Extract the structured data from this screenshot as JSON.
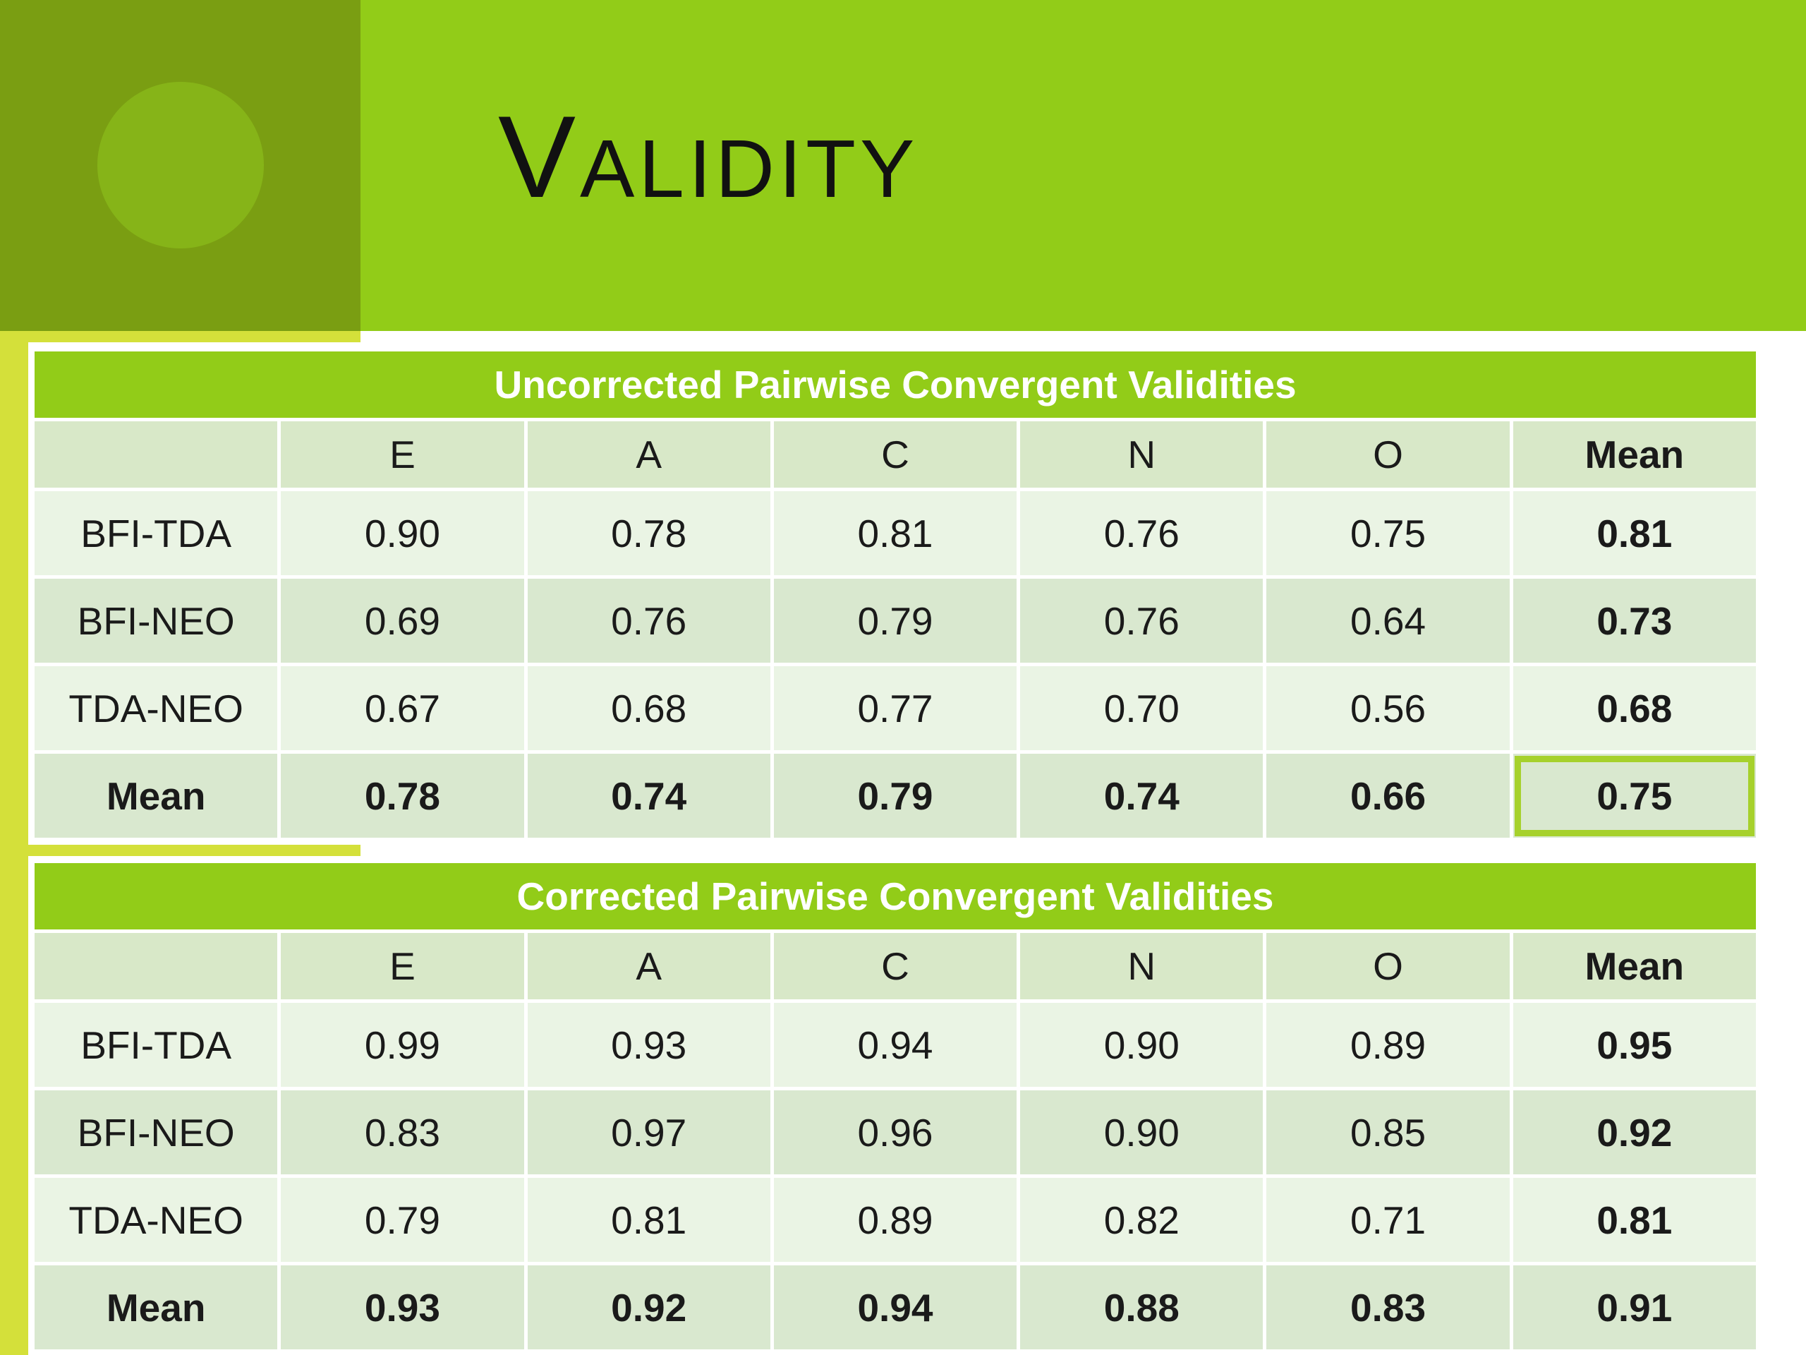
{
  "title": "Validity",
  "tables": [
    {
      "caption": "Uncorrected Pairwise Convergent Validities",
      "columns": [
        "E",
        "A",
        "C",
        "N",
        "O",
        "Mean"
      ],
      "rows": [
        {
          "label": "BFI-TDA",
          "cells": [
            "0.90",
            "0.78",
            "0.81",
            "0.76",
            "0.75",
            "0.81"
          ]
        },
        {
          "label": "BFI-NEO",
          "cells": [
            "0.69",
            "0.76",
            "0.79",
            "0.76",
            "0.64",
            "0.73"
          ]
        },
        {
          "label": "TDA-NEO",
          "cells": [
            "0.67",
            "0.68",
            "0.77",
            "0.70",
            "0.56",
            "0.68"
          ]
        },
        {
          "label": "Mean",
          "cells": [
            "0.78",
            "0.74",
            "0.79",
            "0.74",
            "0.66",
            "0.75"
          ]
        }
      ]
    },
    {
      "caption": "Corrected Pairwise Convergent Validities",
      "columns": [
        "E",
        "A",
        "C",
        "N",
        "O",
        "Mean"
      ],
      "rows": [
        {
          "label": "BFI-TDA",
          "cells": [
            "0.99",
            "0.93",
            "0.94",
            "0.90",
            "0.89",
            "0.95"
          ]
        },
        {
          "label": "BFI-NEO",
          "cells": [
            "0.83",
            "0.97",
            "0.96",
            "0.90",
            "0.85",
            "0.92"
          ]
        },
        {
          "label": "TDA-NEO",
          "cells": [
            "0.79",
            "0.81",
            "0.89",
            "0.82",
            "0.71",
            "0.81"
          ]
        },
        {
          "label": "Mean",
          "cells": [
            "0.93",
            "0.92",
            "0.94",
            "0.88",
            "0.83",
            "0.91"
          ]
        }
      ]
    }
  ]
}
